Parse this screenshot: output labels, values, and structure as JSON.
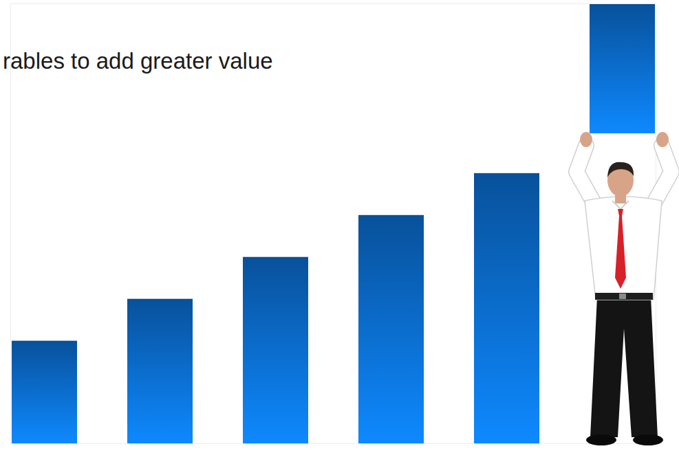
{
  "chart_data": {
    "type": "bar",
    "title": "rables to add greater value",
    "categories": [
      null,
      null,
      null,
      null,
      null,
      null
    ],
    "values": [
      2.45,
      3.45,
      4.45,
      5.45,
      6.45,
      10.5
    ],
    "bases": [
      0,
      0,
      0,
      0,
      0,
      7.4
    ],
    "color": "#0b6fd6",
    "ylim": [
      0,
      10.5
    ],
    "yticks": [],
    "grid": false,
    "tick_labels": false
  }
}
